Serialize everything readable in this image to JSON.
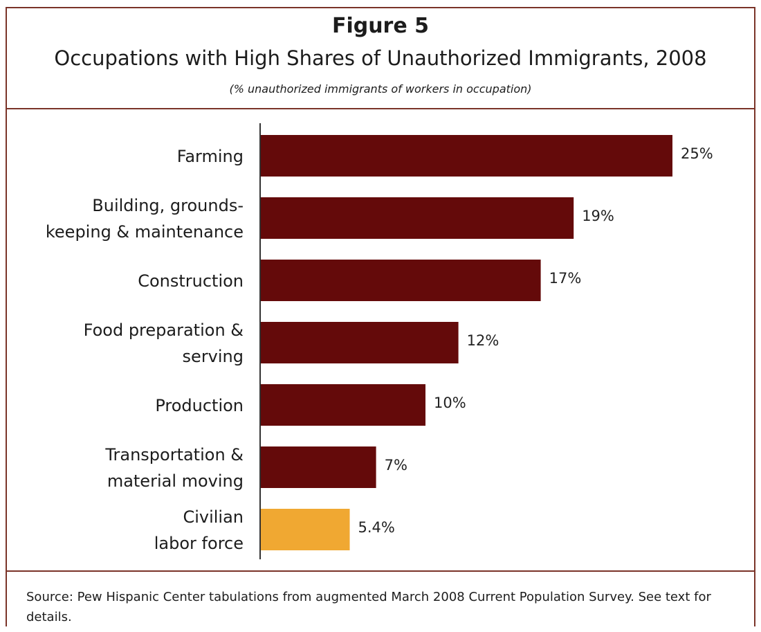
{
  "figure_label": "Figure 5",
  "source_note": "Source:  Pew Hispanic Center tabulations from augmented March 2008 Current Population Survey.  See text for details.",
  "colors": {
    "bar": "#640a0a",
    "highlight": "#f0a832",
    "frame": "#7a3328"
  },
  "chart_data": {
    "type": "bar",
    "orientation": "horizontal",
    "title": "Occupations with High Shares of Unauthorized Immigrants, 2008",
    "subtitle": "(% unauthorized immigrants of workers in occupation)",
    "categories": [
      [
        "Farming"
      ],
      [
        "Building, grounds-",
        "keeping & maintenance"
      ],
      [
        "Construction"
      ],
      [
        "Food preparation &",
        "serving"
      ],
      [
        "Production"
      ],
      [
        "Transportation &",
        "material moving"
      ],
      [
        "Civilian",
        "labor force"
      ]
    ],
    "values": [
      25,
      19,
      17,
      12,
      10,
      7,
      5.4
    ],
    "value_labels": [
      "25%",
      "19%",
      "17%",
      "12%",
      "10%",
      "7%",
      "5.4%"
    ],
    "highlight_index": 6,
    "xlim": [
      0,
      25
    ],
    "axis_visible": false,
    "legend": false,
    "grid": false
  }
}
